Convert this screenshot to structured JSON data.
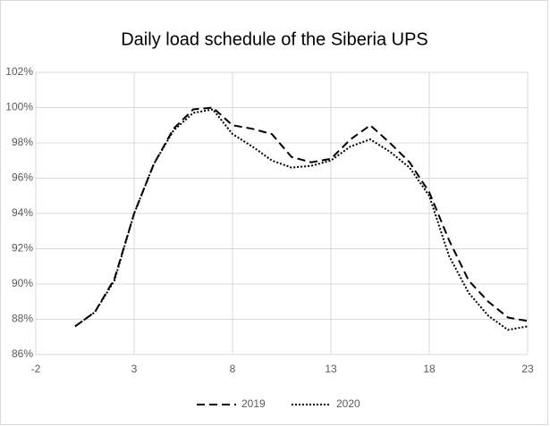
{
  "chart_data": {
    "type": "line",
    "title": "Daily load schedule of the Siberia UPS",
    "x": [
      0,
      1,
      2,
      3,
      4,
      5,
      6,
      7,
      8,
      9,
      10,
      11,
      12,
      13,
      14,
      15,
      16,
      17,
      18,
      19,
      20,
      21,
      22,
      23
    ],
    "series": [
      {
        "name": "2019",
        "color": "#000000",
        "dash": "dashed",
        "values": [
          87.6,
          88.4,
          90.3,
          94.0,
          96.8,
          98.8,
          99.9,
          100.0,
          99.0,
          98.8,
          98.5,
          97.2,
          96.9,
          97.1,
          98.2,
          99.0,
          98.0,
          96.9,
          95.2,
          92.5,
          90.2,
          89.0,
          88.1,
          87.9
        ]
      },
      {
        "name": "2020",
        "color": "#000000",
        "dash": "dotted",
        "values": [
          87.6,
          88.4,
          90.2,
          94.0,
          96.8,
          98.7,
          99.7,
          99.9,
          98.5,
          97.8,
          97.0,
          96.6,
          96.7,
          97.0,
          97.8,
          98.2,
          97.5,
          96.6,
          95.0,
          91.6,
          89.5,
          88.2,
          87.4,
          87.6
        ]
      }
    ],
    "xlim": [
      -2,
      23
    ],
    "xticks": [
      -2,
      3,
      8,
      13,
      18,
      23
    ],
    "ylim": [
      86,
      102
    ],
    "yticks": [
      {
        "value": 86,
        "label": "86%"
      },
      {
        "value": 88,
        "label": "88%"
      },
      {
        "value": 90,
        "label": "90%"
      },
      {
        "value": 92,
        "label": "92%"
      },
      {
        "value": 94,
        "label": "94%"
      },
      {
        "value": 96,
        "label": "96%"
      },
      {
        "value": 98,
        "label": "98%"
      },
      {
        "value": 100,
        "label": "100%"
      },
      {
        "value": 102,
        "label": "102%"
      }
    ],
    "grid": true,
    "legend": "bottom"
  }
}
